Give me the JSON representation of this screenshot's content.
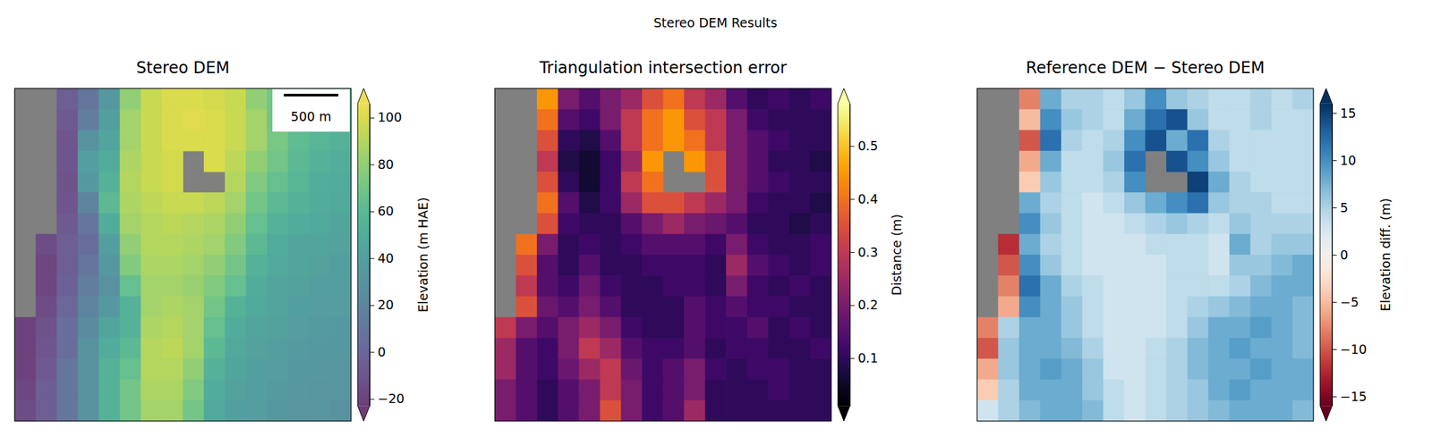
{
  "title": "Stereo DEM Results",
  "chart_data": [
    {
      "type": "heatmap",
      "title": "Stereo DEM",
      "color": "viridis",
      "tick_labels": false,
      "annotations": [
        {
          "text": "500 m"
        }
      ],
      "colorbar": {
        "label": "Elevation (m HAE)",
        "range": [
          -23,
          106
        ],
        "ticks": [
          {
            "value": -20,
            "label": "−20"
          },
          0,
          20,
          40,
          60,
          80,
          100
        ]
      },
      "values": [
        [
          null,
          null,
          -5,
          10,
          35,
          80,
          95,
          100,
          100,
          98,
          95,
          80,
          70,
          65,
          60,
          60
        ],
        [
          null,
          null,
          -8,
          15,
          40,
          85,
          95,
          100,
          102,
          100,
          95,
          85,
          70,
          65,
          60,
          58
        ],
        [
          null,
          null,
          -10,
          30,
          45,
          85,
          95,
          100,
          100,
          100,
          95,
          85,
          72,
          62,
          58,
          55
        ],
        [
          null,
          null,
          -10,
          40,
          50,
          88,
          95,
          98,
          null,
          100,
          92,
          80,
          70,
          60,
          55,
          52
        ],
        [
          null,
          null,
          -12,
          35,
          55,
          90,
          95,
          98,
          null,
          null,
          90,
          75,
          65,
          58,
          52,
          50
        ],
        [
          null,
          null,
          -10,
          20,
          60,
          88,
          92,
          95,
          95,
          92,
          85,
          70,
          60,
          55,
          50,
          48
        ],
        [
          null,
          null,
          -8,
          10,
          50,
          85,
          90,
          92,
          90,
          88,
          80,
          65,
          55,
          50,
          48,
          45
        ],
        [
          null,
          -15,
          -5,
          5,
          40,
          80,
          90,
          90,
          88,
          85,
          75,
          60,
          50,
          45,
          45,
          42
        ],
        [
          null,
          -18,
          -5,
          10,
          35,
          75,
          88,
          88,
          85,
          80,
          70,
          55,
          48,
          45,
          42,
          40
        ],
        [
          null,
          -18,
          -3,
          15,
          30,
          65,
          85,
          85,
          82,
          75,
          65,
          50,
          45,
          42,
          40,
          40
        ],
        [
          null,
          -15,
          0,
          20,
          35,
          55,
          85,
          88,
          85,
          70,
          55,
          48,
          45,
          40,
          38,
          38
        ],
        [
          -20,
          -12,
          5,
          25,
          45,
          55,
          88,
          90,
          85,
          65,
          50,
          45,
          42,
          38,
          36,
          35
        ],
        [
          -20,
          -10,
          5,
          30,
          50,
          60,
          90,
          92,
          85,
          60,
          48,
          42,
          40,
          36,
          35,
          35
        ],
        [
          -20,
          -8,
          10,
          30,
          55,
          65,
          90,
          90,
          80,
          55,
          45,
          40,
          38,
          35,
          34,
          33
        ],
        [
          -18,
          -5,
          10,
          30,
          55,
          70,
          88,
          88,
          75,
          50,
          42,
          40,
          36,
          34,
          33,
          32
        ],
        [
          -15,
          -5,
          10,
          30,
          55,
          70,
          85,
          85,
          70,
          48,
          40,
          38,
          35,
          33,
          32,
          30
        ]
      ]
    },
    {
      "type": "heatmap",
      "title": "Triangulation intersection error",
      "color": "inferno",
      "tick_labels": false,
      "colorbar": {
        "label": "Distance (m)",
        "range": [
          0.01,
          0.58
        ],
        "ticks": [
          0.1,
          0.2,
          0.3,
          0.4,
          0.5
        ]
      },
      "values": [
        [
          null,
          null,
          0.45,
          0.2,
          0.15,
          0.2,
          0.25,
          0.35,
          0.4,
          0.3,
          0.25,
          0.15,
          0.1,
          0.12,
          0.1,
          0.12
        ],
        [
          null,
          null,
          0.4,
          0.15,
          0.12,
          0.2,
          0.3,
          0.4,
          0.45,
          0.35,
          0.3,
          0.2,
          0.12,
          0.1,
          0.1,
          0.1
        ],
        [
          null,
          null,
          0.35,
          0.1,
          0.08,
          0.15,
          0.3,
          0.4,
          0.45,
          0.4,
          0.3,
          0.2,
          0.15,
          0.12,
          0.1,
          0.1
        ],
        [
          null,
          null,
          0.3,
          0.08,
          0.06,
          0.12,
          0.25,
          0.45,
          null,
          0.45,
          0.35,
          0.2,
          0.15,
          0.1,
          0.1,
          0.08
        ],
        [
          null,
          null,
          0.35,
          0.1,
          0.06,
          0.12,
          0.3,
          0.4,
          null,
          null,
          0.35,
          0.2,
          0.15,
          0.12,
          0.1,
          0.1
        ],
        [
          null,
          null,
          0.4,
          0.15,
          0.08,
          0.12,
          0.25,
          0.35,
          0.35,
          0.3,
          0.25,
          0.2,
          0.12,
          0.1,
          0.1,
          0.08
        ],
        [
          null,
          null,
          0.35,
          0.12,
          0.1,
          0.1,
          0.15,
          0.2,
          0.25,
          0.2,
          0.18,
          0.15,
          0.1,
          0.1,
          0.08,
          0.1
        ],
        [
          null,
          0.4,
          0.2,
          0.1,
          0.12,
          0.1,
          0.12,
          0.15,
          0.15,
          0.15,
          0.12,
          0.2,
          0.12,
          0.1,
          0.1,
          0.12
        ],
        [
          null,
          0.35,
          0.15,
          0.1,
          0.15,
          0.1,
          0.1,
          0.12,
          0.12,
          0.12,
          0.1,
          0.25,
          0.15,
          0.12,
          0.1,
          0.12
        ],
        [
          null,
          0.3,
          0.15,
          0.12,
          0.18,
          0.12,
          0.1,
          0.1,
          0.12,
          0.12,
          0.1,
          0.2,
          0.12,
          0.1,
          0.12,
          0.1
        ],
        [
          null,
          0.35,
          0.18,
          0.15,
          0.2,
          0.15,
          0.1,
          0.1,
          0.1,
          0.15,
          0.12,
          0.15,
          0.12,
          0.12,
          0.1,
          0.1
        ],
        [
          0.3,
          0.2,
          0.15,
          0.2,
          0.25,
          0.2,
          0.12,
          0.1,
          0.1,
          0.15,
          0.12,
          0.12,
          0.15,
          0.1,
          0.12,
          0.1
        ],
        [
          0.25,
          0.15,
          0.12,
          0.2,
          0.3,
          0.25,
          0.15,
          0.12,
          0.12,
          0.15,
          0.1,
          0.12,
          0.12,
          0.1,
          0.1,
          0.12
        ],
        [
          0.25,
          0.15,
          0.12,
          0.18,
          0.25,
          0.3,
          0.18,
          0.12,
          0.15,
          0.2,
          0.12,
          0.1,
          0.12,
          0.12,
          0.1,
          0.1
        ],
        [
          0.2,
          0.15,
          0.1,
          0.15,
          0.2,
          0.3,
          0.2,
          0.12,
          0.15,
          0.2,
          0.1,
          0.1,
          0.1,
          0.12,
          0.1,
          0.1
        ],
        [
          0.2,
          0.15,
          0.1,
          0.15,
          0.2,
          0.35,
          0.2,
          0.12,
          0.15,
          0.25,
          0.1,
          0.1,
          0.1,
          0.1,
          0.1,
          0.1
        ]
      ]
    },
    {
      "type": "heatmap",
      "title": "Reference DEM − Stereo DEM",
      "color": "RdBu",
      "tick_labels": false,
      "colorbar": {
        "label": "Elevation diff. (m)",
        "range": [
          -16,
          16
        ],
        "ticks": [
          {
            "value": -15,
            "label": "−15"
          },
          {
            "value": -10,
            "label": "−10"
          },
          {
            "value": -5,
            "label": "−5"
          },
          0,
          5,
          10,
          15
        ]
      },
      "values": [
        [
          null,
          null,
          -8,
          8,
          5,
          5,
          4,
          6,
          10,
          6,
          5,
          4,
          4,
          5,
          4,
          5
        ],
        [
          null,
          null,
          -5,
          10,
          6,
          5,
          4,
          8,
          12,
          14,
          6,
          4,
          4,
          5,
          4,
          4
        ],
        [
          null,
          null,
          -10,
          12,
          5,
          4,
          5,
          10,
          14,
          8,
          12,
          5,
          4,
          4,
          4,
          4
        ],
        [
          null,
          null,
          -6,
          8,
          4,
          4,
          6,
          12,
          null,
          14,
          10,
          6,
          4,
          4,
          4,
          4
        ],
        [
          null,
          null,
          -4,
          6,
          4,
          4,
          5,
          10,
          null,
          null,
          15,
          8,
          5,
          4,
          4,
          4
        ],
        [
          null,
          null,
          8,
          5,
          4,
          3,
          4,
          6,
          8,
          10,
          12,
          6,
          5,
          5,
          4,
          4
        ],
        [
          null,
          null,
          10,
          6,
          4,
          3,
          3,
          4,
          5,
          6,
          5,
          4,
          6,
          5,
          5,
          5
        ],
        [
          null,
          -12,
          8,
          5,
          4,
          3,
          3,
          3,
          4,
          4,
          4,
          3,
          8,
          5,
          6,
          6
        ],
        [
          null,
          -10,
          10,
          6,
          4,
          3,
          3,
          3,
          3,
          4,
          4,
          3,
          6,
          6,
          7,
          8
        ],
        [
          null,
          -8,
          12,
          8,
          5,
          4,
          3,
          3,
          3,
          4,
          4,
          4,
          5,
          7,
          8,
          8
        ],
        [
          null,
          -6,
          10,
          8,
          6,
          4,
          3,
          3,
          3,
          4,
          5,
          6,
          7,
          8,
          8,
          7
        ],
        [
          -8,
          5,
          8,
          8,
          6,
          4,
          3,
          3,
          3,
          4,
          6,
          8,
          8,
          9,
          8,
          7
        ],
        [
          -10,
          6,
          8,
          8,
          7,
          5,
          3,
          3,
          4,
          5,
          7,
          8,
          9,
          8,
          8,
          7
        ],
        [
          -6,
          6,
          8,
          9,
          8,
          6,
          3,
          3,
          4,
          5,
          7,
          8,
          8,
          9,
          8,
          8
        ],
        [
          -4,
          5,
          8,
          8,
          8,
          6,
          4,
          3,
          4,
          5,
          6,
          8,
          9,
          8,
          8,
          8
        ],
        [
          3,
          5,
          7,
          8,
          8,
          7,
          4,
          3,
          4,
          5,
          6,
          7,
          8,
          8,
          8,
          7
        ]
      ]
    }
  ]
}
